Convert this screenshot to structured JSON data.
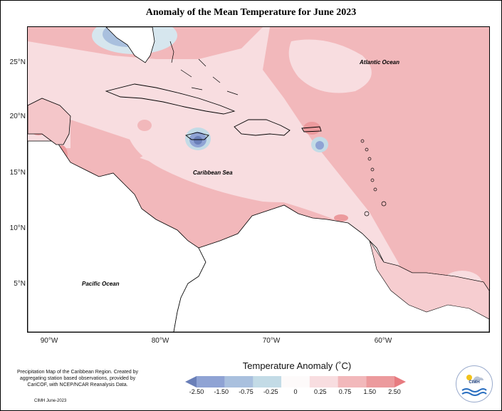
{
  "title": "Anomaly of the Mean Temperature for June 2023",
  "y_ticks": [
    "25°N",
    "20°N",
    "15°N",
    "10°N",
    "5°N"
  ],
  "x_ticks": [
    "90°W",
    "80°W",
    "70°W",
    "60°W"
  ],
  "map_labels": {
    "atlantic": "Atlantic Ocean",
    "caribbean": "Caribbean Sea",
    "pacific": "Pacific Ocean"
  },
  "legend": {
    "title": "Temperature Anomaly (˚C)",
    "labels": [
      "-2.50",
      "-1.50",
      "-0.75",
      "-0.25",
      "0",
      "0.25",
      "0.75",
      "1.50",
      "2.50"
    ],
    "colors": [
      "#6a7fb8",
      "#8fa3d4",
      "#a9c0de",
      "#c3dbe6",
      "#fdfafa",
      "#f8dde0",
      "#f2b8bb",
      "#ec9a9d",
      "#e77b80"
    ]
  },
  "footer": {
    "note": "Precipitation Map of the Caribbean Region. Created by aggregating station based observations, provided by CariCOF, with NCEP/NCAR Reanalysis Data.",
    "date": "CIMH June-2023"
  },
  "logo": {
    "text": "CIMH"
  }
}
